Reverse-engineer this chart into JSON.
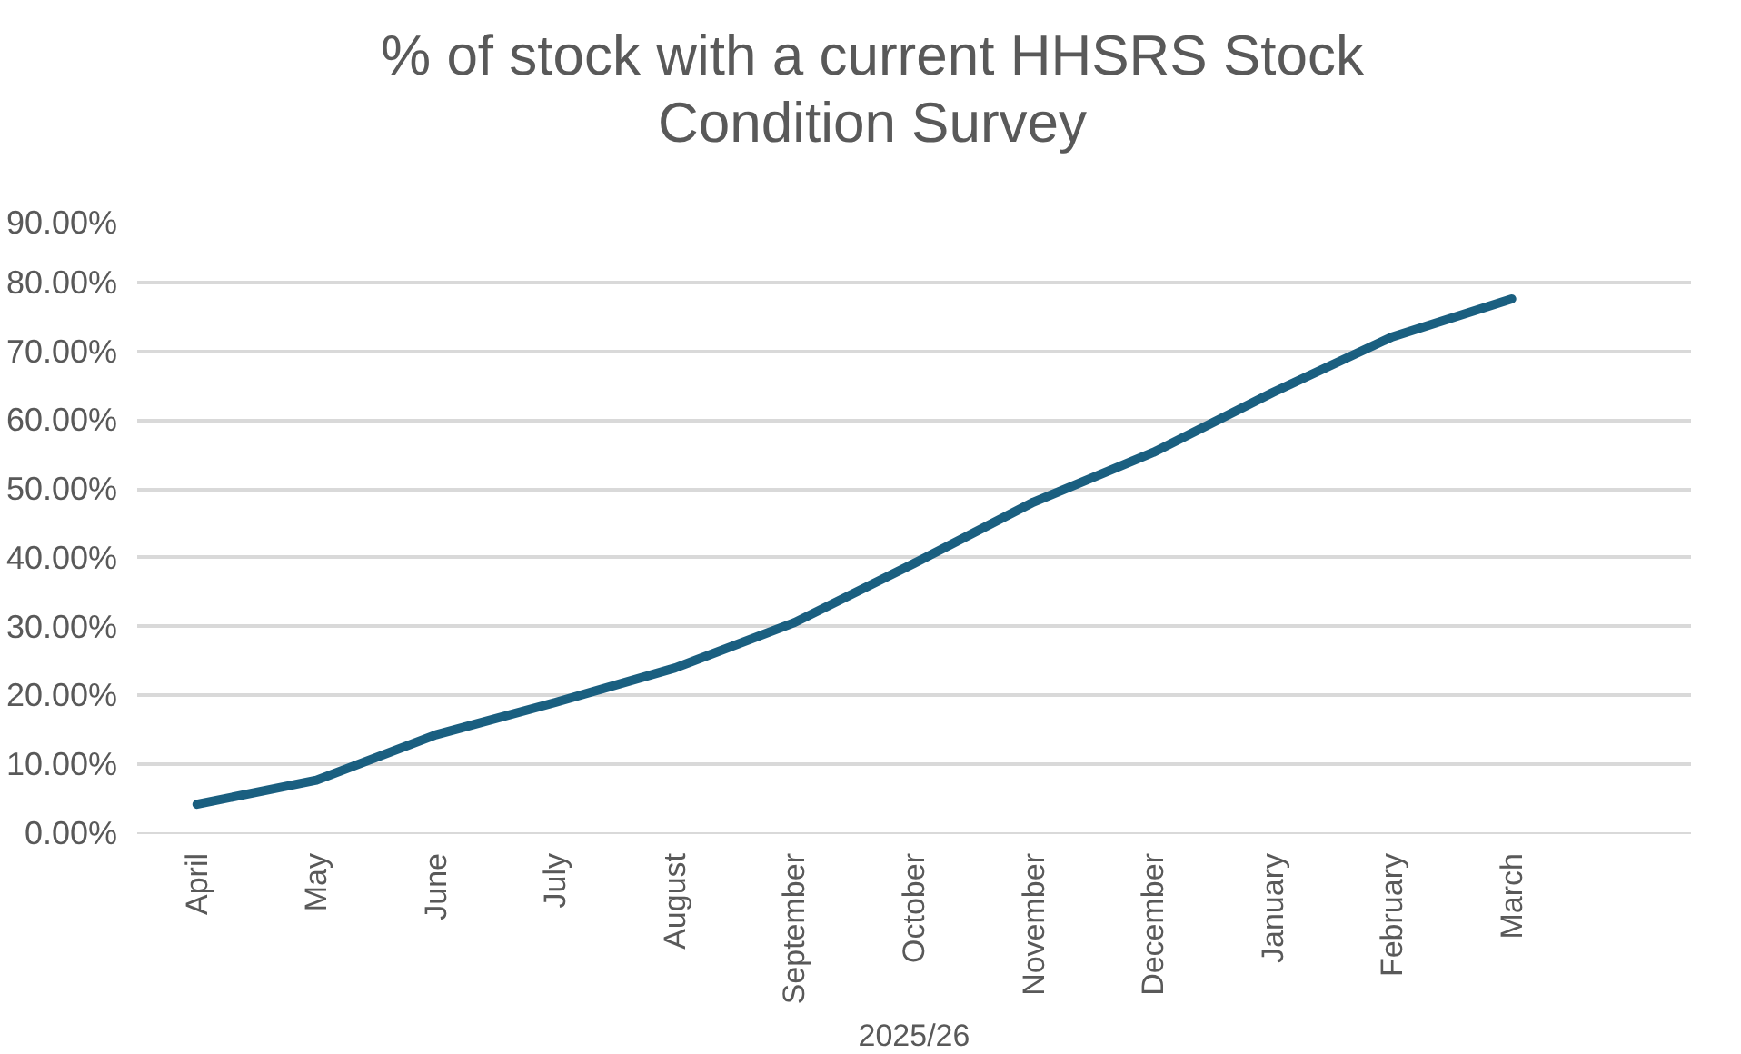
{
  "chart_data": {
    "type": "line",
    "title": "% of stock with a current HHSRS Stock\nCondition Survey",
    "xlabel": "2025/26",
    "categories": [
      "April",
      "May",
      "June",
      "July",
      "August",
      "September",
      "October",
      "November",
      "December",
      "January",
      "February",
      "March",
      null
    ],
    "series": [
      {
        "color": "#1a5f80",
        "values": [
          4.2,
          7.7,
          14.3,
          19.0,
          24.0,
          30.6,
          39.2,
          48.1,
          55.3,
          64.0,
          72.1,
          77.6,
          null
        ]
      }
    ],
    "ylim": [
      0,
      90
    ],
    "yticks": [
      {
        "value": 0,
        "label": "0.00%"
      },
      {
        "value": 10,
        "label": "10.00%"
      },
      {
        "value": 20,
        "label": "20.00%"
      },
      {
        "value": 30,
        "label": "30.00%"
      },
      {
        "value": 40,
        "label": "40.00%"
      },
      {
        "value": 50,
        "label": "50.00%"
      },
      {
        "value": 60,
        "label": "60.00%"
      },
      {
        "value": 70,
        "label": "70.00%"
      },
      {
        "value": 80,
        "label": "80.00%"
      },
      {
        "value": 90,
        "label": "90.00%"
      }
    ],
    "grid": "y",
    "marker": "none",
    "line_style": "solid"
  }
}
